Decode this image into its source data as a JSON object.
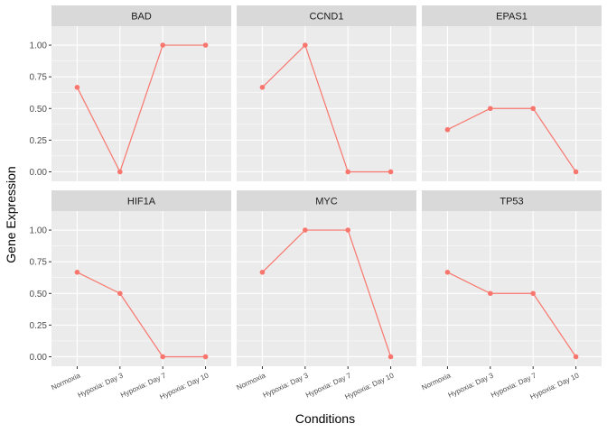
{
  "chart_data": {
    "type": "line",
    "xlabel": "Conditions",
    "ylabel": "Gene Expression",
    "categories": [
      "Normoxia",
      "Hypoxia: Day 3",
      "Hypoxia: Day 7",
      "Hypoxia: Day 10"
    ],
    "ylim": [
      -0.075,
      1.15
    ],
    "yticks": [
      0.0,
      0.25,
      0.5,
      0.75,
      1.0
    ],
    "ytick_labels": [
      "0.00",
      "0.25",
      "0.50",
      "0.75",
      "1.00"
    ],
    "grid": true,
    "line_color": "#f8766d",
    "facets": [
      {
        "label": "BAD",
        "values": [
          0.667,
          0.0,
          1.0,
          1.0
        ]
      },
      {
        "label": "CCND1",
        "values": [
          0.667,
          1.0,
          0.0,
          0.0
        ]
      },
      {
        "label": "EPAS1",
        "values": [
          0.333,
          0.5,
          0.5,
          0.0
        ]
      },
      {
        "label": "HIF1A",
        "values": [
          0.667,
          0.5,
          0.0,
          0.0
        ]
      },
      {
        "label": "MYC",
        "values": [
          0.667,
          1.0,
          1.0,
          0.0
        ]
      },
      {
        "label": "TP53",
        "values": [
          0.667,
          0.5,
          0.5,
          0.0
        ]
      }
    ]
  }
}
